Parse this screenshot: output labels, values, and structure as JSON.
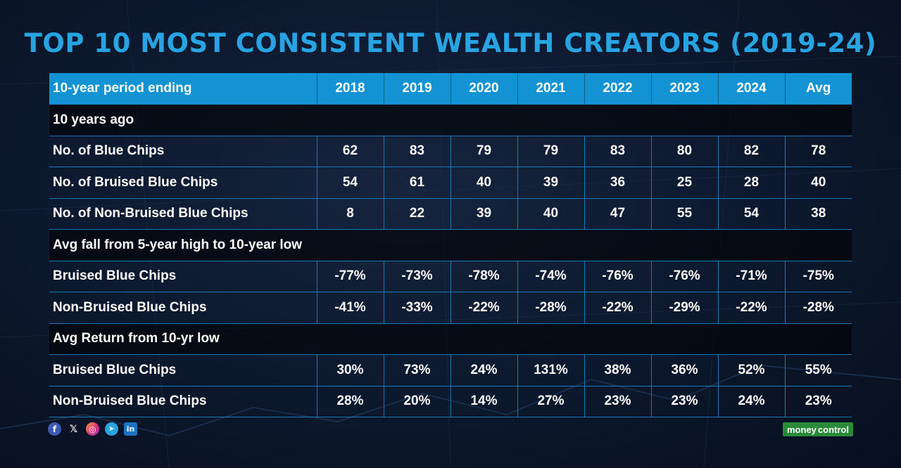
{
  "title": "TOP 10 MOST CONSISTENT WEALTH CREATORS (2019-24)",
  "table": {
    "columns": [
      "10-year period ending",
      "2018",
      "2019",
      "2020",
      "2021",
      "2022",
      "2023",
      "2024",
      "Avg"
    ],
    "rows": [
      {
        "type": "section",
        "label": "10 years ago"
      },
      {
        "type": "row",
        "label": "No. of Blue Chips",
        "values": [
          "62",
          "83",
          "79",
          "79",
          "83",
          "80",
          "82",
          "78"
        ]
      },
      {
        "type": "row",
        "label": "No. of Bruised Blue Chips",
        "values": [
          "54",
          "61",
          "40",
          "39",
          "36",
          "25",
          "28",
          "40"
        ]
      },
      {
        "type": "row",
        "label": "No. of Non-Bruised Blue Chips",
        "values": [
          "8",
          "22",
          "39",
          "40",
          "47",
          "55",
          "54",
          "38"
        ]
      },
      {
        "type": "section",
        "label": "Avg fall from 5-year high to 10-year low"
      },
      {
        "type": "row",
        "label": "Bruised Blue Chips",
        "values": [
          "-77%",
          "-73%",
          "-78%",
          "-74%",
          "-76%",
          "-76%",
          "-71%",
          "-75%"
        ]
      },
      {
        "type": "row",
        "label": "Non-Bruised Blue Chips",
        "values": [
          "-41%",
          "-33%",
          "-22%",
          "-28%",
          "-22%",
          "-29%",
          "-22%",
          "-28%"
        ]
      },
      {
        "type": "section",
        "label": "Avg Return from 10-yr low"
      },
      {
        "type": "row",
        "label": "Bruised Blue Chips",
        "values": [
          "30%",
          "73%",
          "24%",
          "131%",
          "38%",
          "36%",
          "52%",
          "55%"
        ]
      },
      {
        "type": "row",
        "label": "Non-Bruised Blue Chips",
        "values": [
          "28%",
          "20%",
          "14%",
          "27%",
          "23%",
          "23%",
          "24%",
          "23%"
        ]
      }
    ]
  },
  "footer": {
    "social": [
      {
        "name": "facebook-icon",
        "glyph": "f"
      },
      {
        "name": "x-icon",
        "glyph": "𝕏"
      },
      {
        "name": "instagram-icon",
        "glyph": "◎"
      },
      {
        "name": "telegram-icon",
        "glyph": "➤"
      },
      {
        "name": "linkedin-icon",
        "glyph": "in"
      }
    ],
    "brand_part1": "money",
    "brand_part2": "control"
  },
  "colors": {
    "title": "#29a4e2",
    "header_bg": "#1493d4",
    "grid_line": "#1a78b3",
    "background": "#0d1a30",
    "brand_bg": "#2a8a3a"
  }
}
